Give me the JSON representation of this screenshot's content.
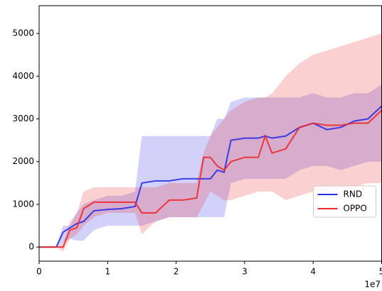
{
  "chart_data": {
    "type": "line",
    "offset_label": "1e7",
    "x": [
      0,
      2500000,
      3500000,
      4500000,
      5500000,
      6500000,
      8000000,
      10000000,
      12000000,
      14000000,
      15000000,
      17000000,
      19000000,
      21000000,
      23000000,
      24000000,
      25000000,
      26000000,
      27000000,
      28000000,
      30000000,
      32000000,
      33000000,
      34000000,
      36000000,
      38000000,
      40000000,
      42000000,
      44000000,
      46000000,
      48000000,
      50000000
    ],
    "series": [
      {
        "name": "RND",
        "color": "#2d2de8",
        "values": [
          0,
          0,
          350,
          450,
          550,
          600,
          850,
          880,
          900,
          950,
          1500,
          1550,
          1550,
          1600,
          1600,
          1600,
          1600,
          1800,
          1750,
          2500,
          2550,
          2550,
          2600,
          2550,
          2600,
          2800,
          2900,
          2750,
          2800,
          2950,
          3000,
          3300
        ],
        "lower": [
          0,
          0,
          100,
          200,
          150,
          150,
          400,
          500,
          500,
          500,
          500,
          600,
          700,
          700,
          700,
          700,
          700,
          700,
          700,
          1500,
          1600,
          1600,
          1600,
          1600,
          1600,
          1800,
          1900,
          1900,
          1800,
          1900,
          2000,
          2000
        ],
        "upper": [
          0,
          0,
          500,
          500,
          800,
          1000,
          1100,
          1200,
          1200,
          1300,
          2600,
          2600,
          2600,
          2600,
          2600,
          2600,
          2600,
          3000,
          3000,
          3400,
          3500,
          3500,
          3500,
          3500,
          3500,
          3500,
          3600,
          3500,
          3500,
          3600,
          3600,
          3800
        ]
      },
      {
        "name": "OPPO",
        "color": "#ee2a2a",
        "values": [
          0,
          0,
          0,
          400,
          450,
          900,
          1050,
          1050,
          1050,
          1050,
          800,
          800,
          1100,
          1100,
          1150,
          2100,
          2100,
          1900,
          1800,
          2000,
          2100,
          2100,
          2600,
          2200,
          2300,
          2800,
          2900,
          2850,
          2850,
          2900,
          2900,
          3200
        ],
        "lower": [
          0,
          0,
          -100,
          200,
          300,
          500,
          700,
          800,
          800,
          800,
          300,
          600,
          700,
          700,
          700,
          1000,
          1300,
          1200,
          1100,
          1100,
          1200,
          1300,
          1300,
          1300,
          1100,
          1200,
          1300,
          1300,
          1400,
          1400,
          1500,
          1500
        ],
        "upper": [
          0,
          0,
          100,
          600,
          800,
          1300,
          1400,
          1400,
          1400,
          1400,
          1400,
          1400,
          1500,
          1500,
          1500,
          2200,
          2600,
          2800,
          3000,
          3200,
          3400,
          3500,
          3500,
          3600,
          4000,
          4300,
          4500,
          4600,
          4700,
          4800,
          4900,
          5000
        ]
      }
    ],
    "xlim": [
      0,
      50000000
    ],
    "xticks": [
      {
        "value": 0,
        "label": "0"
      },
      {
        "value": 10000000,
        "label": "1"
      },
      {
        "value": 20000000,
        "label": "2"
      },
      {
        "value": 30000000,
        "label": "3"
      },
      {
        "value": 40000000,
        "label": "4"
      },
      {
        "value": 50000000,
        "label": "5"
      }
    ],
    "ylim": [
      -330,
      5650
    ],
    "yticks": [
      0,
      1000,
      2000,
      3000,
      4000,
      5000
    ],
    "grid": false,
    "legend": "lower right"
  }
}
